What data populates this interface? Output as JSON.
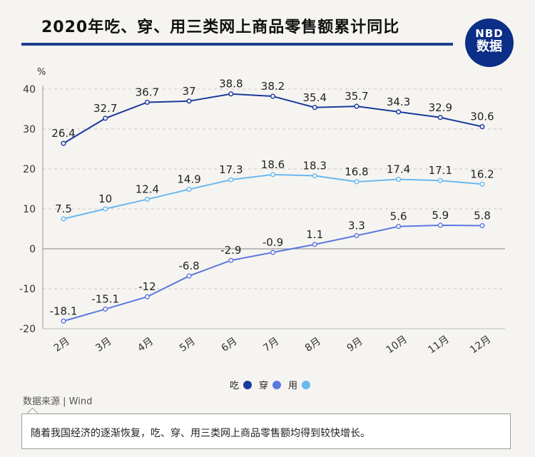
{
  "title": "2020年吃、穿、用三类网上商品零售额累计同比",
  "logo": {
    "line1": "NBD",
    "line2": "数据"
  },
  "colors": {
    "eat": "#1a3a9c",
    "wear": "#5b78e0",
    "use": "#6ab8f0"
  },
  "chart_data": {
    "type": "line",
    "categories": [
      "2月",
      "3月",
      "4月",
      "5月",
      "6月",
      "7月",
      "8月",
      "9月",
      "10月",
      "11月",
      "12月"
    ],
    "unit": "%",
    "ylim": [
      -20,
      40
    ],
    "yticks": [
      40,
      30,
      20,
      10,
      0,
      -10,
      -20
    ],
    "grid": true,
    "legend": "bottom-center",
    "series": [
      {
        "name": "吃",
        "color": "#1a3a9c",
        "values": [
          26.4,
          32.7,
          36.7,
          37,
          38.8,
          38.2,
          35.4,
          35.7,
          34.3,
          32.9,
          30.6
        ]
      },
      {
        "name": "穿",
        "color": "#5b78e0",
        "values": [
          -18.1,
          -15.1,
          -12,
          -6.8,
          -2.9,
          -0.9,
          1.1,
          3.3,
          5.6,
          5.9,
          5.8
        ]
      },
      {
        "name": "用",
        "color": "#6ab8f0",
        "values": [
          7.5,
          10,
          12.4,
          14.9,
          17.3,
          18.6,
          18.3,
          16.8,
          17.4,
          17.1,
          16.2
        ]
      }
    ]
  },
  "source": "数据来源 | Wind",
  "note": "随着我国经济的逐渐恢复，吃、穿、用三类网上商品零售额均得到较快增长。"
}
